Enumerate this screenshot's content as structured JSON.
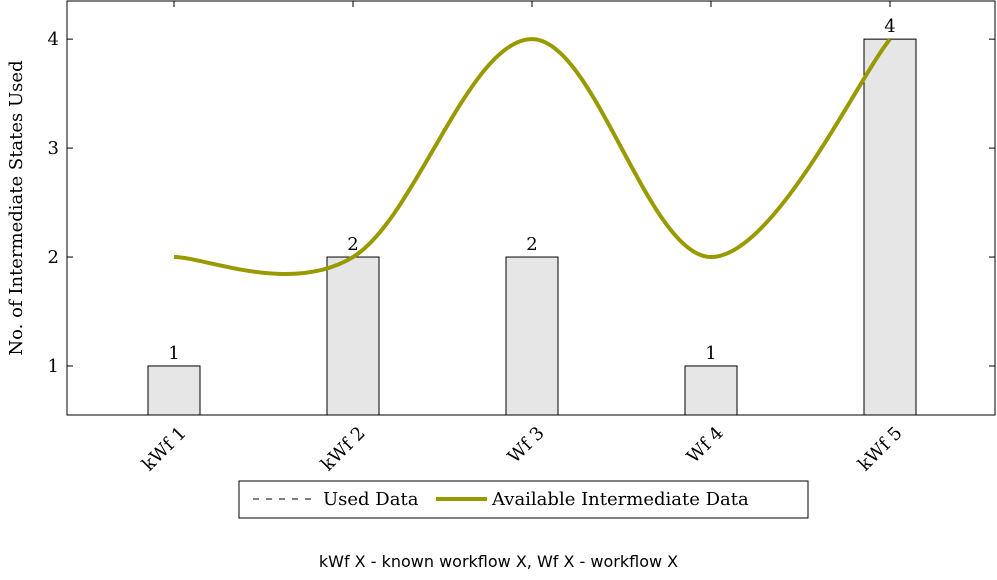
{
  "chart_data": {
    "type": "bar",
    "categories": [
      "kWf 1",
      "kWf 2",
      "Wf 3",
      "Wf 4",
      "kWf 5"
    ],
    "series": [
      {
        "name": "Used Data",
        "kind": "bar",
        "values": [
          1,
          2,
          2,
          1,
          4
        ],
        "color": "#e6e6e6",
        "stroke": "#000000",
        "line_style": "dashed"
      },
      {
        "name": "Available Intermediate Data",
        "kind": "line",
        "values": [
          2,
          2,
          4,
          2,
          4
        ],
        "color": "#999900",
        "smooth": true
      }
    ],
    "data_labels": [
      "1",
      "2",
      "2",
      "1",
      "4"
    ],
    "ylabel": "No. of Intermediate States Used",
    "xlabel": "",
    "yticks": [
      1,
      2,
      3,
      4
    ],
    "ylim": [
      0.55,
      4.35
    ],
    "xtick_rotation": 45,
    "legend_position": "bottom"
  },
  "footnote": "kWf X - known workflow X, Wf X - workflow X"
}
